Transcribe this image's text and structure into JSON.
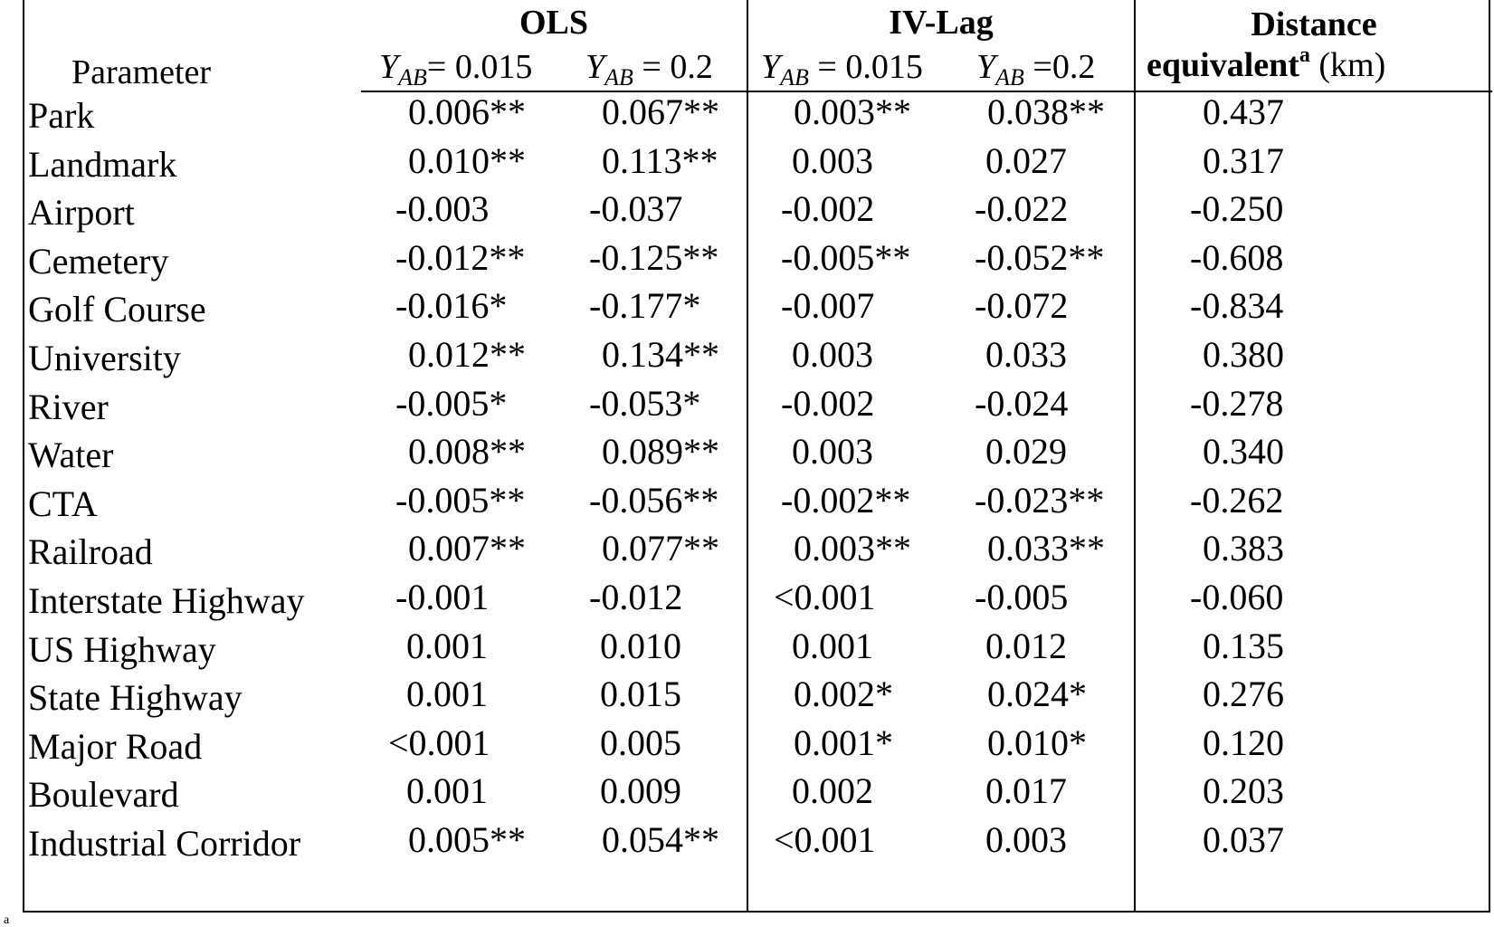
{
  "header": {
    "group_ols": "OLS",
    "group_ivlag": "IV-Lag",
    "distance_line1": "Distance",
    "distance_line2_bold": "equivalent",
    "distance_sup": "a",
    "distance_unit": " (km)",
    "parameter_label": "Parameter",
    "subcols": [
      {
        "y": "Y",
        "sub": "AB",
        "rest": "= 0.015"
      },
      {
        "y": "Y",
        "sub": "AB",
        "rest": " = 0.2"
      },
      {
        "y": "Y",
        "sub": "AB",
        "rest": " = 0.015"
      },
      {
        "y": "Y",
        "sub": "AB",
        "rest": " =0.2"
      }
    ]
  },
  "rows": [
    {
      "param": "Park",
      "ols1": "0.006**",
      "ols2": "0.067**",
      "iv1": "0.003**",
      "iv2": "0.038**",
      "dist": "0.437"
    },
    {
      "param": "Landmark",
      "ols1": "0.010**",
      "ols2": "0.113**",
      "iv1": "0.003",
      "iv2": "0.027",
      "dist": "0.317"
    },
    {
      "param": "Airport",
      "ols1": "-0.003",
      "ols2": "-0.037",
      "iv1": "-0.002",
      "iv2": "-0.022",
      "dist": "-0.250"
    },
    {
      "param": "Cemetery",
      "ols1": "-0.012**",
      "ols2": "-0.125**",
      "iv1": "-0.005**",
      "iv2": "-0.052**",
      "dist": "-0.608"
    },
    {
      "param": "Golf Course",
      "ols1": "-0.016*",
      "ols2": "-0.177*",
      "iv1": "-0.007",
      "iv2": "-0.072",
      "dist": "-0.834"
    },
    {
      "param": "University",
      "ols1": "0.012**",
      "ols2": "0.134**",
      "iv1": "0.003",
      "iv2": "0.033",
      "dist": "0.380"
    },
    {
      "param": "River",
      "ols1": "-0.005*",
      "ols2": "-0.053*",
      "iv1": "-0.002",
      "iv2": "-0.024",
      "dist": "-0.278"
    },
    {
      "param": "Water",
      "ols1": "0.008**",
      "ols2": "0.089**",
      "iv1": "0.003",
      "iv2": "0.029",
      "dist": "0.340"
    },
    {
      "param": "CTA",
      "ols1": "-0.005**",
      "ols2": "-0.056**",
      "iv1": "-0.002**",
      "iv2": "-0.023**",
      "dist": "-0.262"
    },
    {
      "param": "Railroad",
      "ols1": "0.007**",
      "ols2": "0.077**",
      "iv1": "0.003**",
      "iv2": "0.033**",
      "dist": "0.383"
    },
    {
      "param": "Interstate Highway",
      "ols1": "-0.001",
      "ols2": "-0.012",
      "iv1": "<0.001",
      "iv2": "-0.005",
      "dist": "-0.060"
    },
    {
      "param": "US Highway",
      "ols1": "0.001",
      "ols2": "0.010",
      "iv1": "0.001",
      "iv2": "0.012",
      "dist": "0.135"
    },
    {
      "param": "State Highway",
      "ols1": "0.001",
      "ols2": "0.015",
      "iv1": "0.002*",
      "iv2": "0.024*",
      "dist": "0.276"
    },
    {
      "param": "Major Road",
      "ols1": "<0.001",
      "ols2": "0.005",
      "iv1": "0.001*",
      "iv2": "0.010*",
      "dist": "0.120"
    },
    {
      "param": "Boulevard",
      "ols1": "0.001",
      "ols2": "0.009",
      "iv1": "0.002",
      "iv2": "0.017",
      "dist": "0.203"
    },
    {
      "param": "Industrial Corridor",
      "ols1": "0.005**",
      "ols2": "0.054**",
      "iv1": "<0.001",
      "iv2": "0.003",
      "dist": "0.037"
    }
  ],
  "footnote_mark": "a"
}
